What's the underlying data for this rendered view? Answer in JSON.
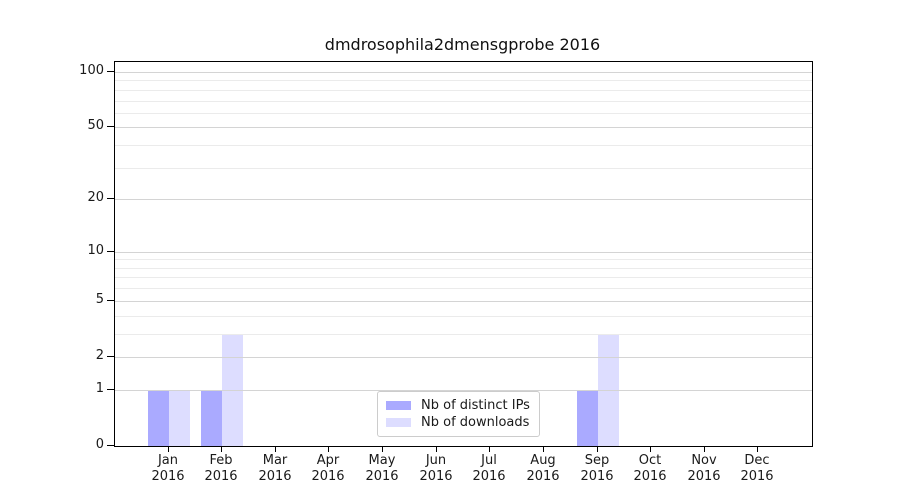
{
  "page": {
    "background": "#ffffff"
  },
  "chart_data": {
    "type": "bar",
    "title": "dmdrosophila2dmensgprobe 2016",
    "categories": [
      "Jan 2016",
      "Feb 2016",
      "Mar 2016",
      "Apr 2016",
      "May 2016",
      "Jun 2016",
      "Jul 2016",
      "Aug 2016",
      "Sep 2016",
      "Oct 2016",
      "Nov 2016",
      "Dec 2016"
    ],
    "series": [
      {
        "name": "Nb of distinct IPs",
        "color": "#aaaaff",
        "values": [
          1,
          1,
          0,
          0,
          0,
          0,
          0,
          0,
          1,
          0,
          0,
          0
        ]
      },
      {
        "name": "Nb of downloads",
        "color": "#ddddff",
        "values": [
          1,
          3,
          0,
          0,
          0,
          0,
          0,
          0,
          3,
          0,
          0,
          0
        ]
      }
    ],
    "y_axis": {
      "scale": "log1p",
      "ticks": [
        0,
        1,
        2,
        5,
        10,
        20,
        50,
        100
      ],
      "minor_ticks": [
        3,
        4,
        6,
        7,
        8,
        9,
        30,
        40,
        60,
        70,
        80,
        90
      ],
      "range": [
        0,
        110
      ]
    },
    "x_axis": {
      "label": "",
      "tick_style": "two-line month/year"
    },
    "legend": {
      "position": "lower center",
      "border_color": "#cccccc"
    },
    "grid": true,
    "colors": {
      "major_grid": "#d4d4d4",
      "minor_grid": "#ebebeb",
      "spine": "#000000"
    }
  }
}
